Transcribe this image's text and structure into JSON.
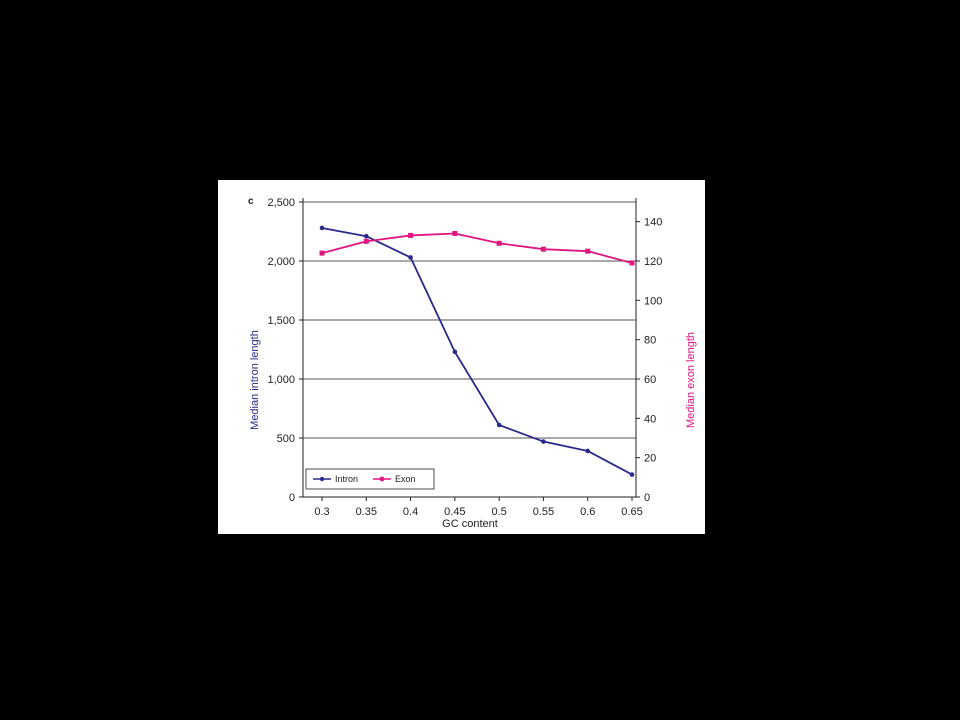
{
  "panel_label": "c",
  "chart_data": {
    "type": "line",
    "x": [
      0.3,
      0.35,
      0.4,
      0.45,
      0.5,
      0.55,
      0.6,
      0.65
    ],
    "x_tick_labels": [
      "0.3",
      "0.35",
      "0.4",
      "0.45",
      "0.5",
      "0.55",
      "0.6",
      "0.65"
    ],
    "xlabel": "GC content",
    "ylabel_left": "Median intron length",
    "ylabel_right": "Median exon length",
    "ylim_left": [
      0,
      2500
    ],
    "ylim_right": [
      0,
      150
    ],
    "y_left_ticks": [
      0,
      500,
      1000,
      1500,
      2000,
      2500
    ],
    "y_left_tick_labels": [
      "0",
      "500",
      "1,000",
      "1,500",
      "2,000",
      "2,500"
    ],
    "y_right_ticks": [
      0,
      20,
      40,
      60,
      80,
      100,
      120,
      140
    ],
    "y_right_tick_labels": [
      "0",
      "20",
      "40",
      "60",
      "80",
      "100",
      "120",
      "140"
    ],
    "grid": true,
    "legend_position": "bottom-left",
    "series": [
      {
        "name": "Intron",
        "axis": "left",
        "color": "#2b2a8c",
        "values": [
          2280,
          2210,
          2030,
          1230,
          610,
          470,
          390,
          190
        ]
      },
      {
        "name": "Exon",
        "axis": "right",
        "color": "#e0157f",
        "values": [
          124,
          130,
          133,
          134,
          129,
          126,
          125,
          119
        ]
      }
    ]
  }
}
